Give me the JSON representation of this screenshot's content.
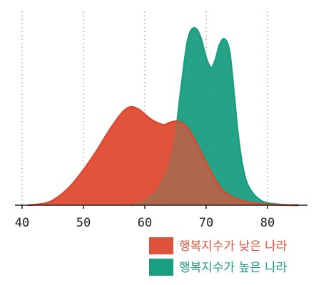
{
  "chart_data": {
    "type": "area",
    "title": "",
    "xlabel": "",
    "ylabel": "",
    "xlim": [
      38,
      86
    ],
    "ylim": [
      0,
      0.09
    ],
    "x_ticks": [
      40,
      50,
      60,
      70,
      80
    ],
    "x_tick_labels": [
      "40",
      "50",
      "60",
      "70",
      "80"
    ],
    "grid": "vertical-dotted",
    "legend_position": "bottom-right",
    "series": [
      {
        "name": "행복지수가 낮은 나라",
        "color": "#e0533b",
        "x": [
          41,
          44,
          46,
          48,
          50,
          52,
          54,
          56,
          57.5,
          59,
          61,
          63,
          64,
          65.5,
          67,
          69,
          71,
          73,
          76,
          80,
          85
        ],
        "y": [
          0.0,
          0.001,
          0.004,
          0.009,
          0.016,
          0.024,
          0.033,
          0.041,
          0.0445,
          0.0435,
          0.039,
          0.0365,
          0.0375,
          0.038,
          0.035,
          0.025,
          0.014,
          0.006,
          0.002,
          0.0004,
          0.0
        ]
      },
      {
        "name": "행복지수가 높은 나라",
        "color": "#1a9e80",
        "x": [
          58,
          60,
          62,
          63,
          64,
          65,
          66,
          67,
          68,
          69,
          70,
          70.8,
          71.5,
          72.2,
          73,
          73.8,
          74.5,
          75.2,
          76,
          77,
          79,
          82,
          85
        ],
        "y": [
          0.0,
          0.002,
          0.007,
          0.012,
          0.018,
          0.032,
          0.055,
          0.075,
          0.0805,
          0.077,
          0.067,
          0.0625,
          0.066,
          0.073,
          0.0755,
          0.07,
          0.052,
          0.032,
          0.017,
          0.008,
          0.002,
          0.0003,
          0.0
        ]
      }
    ]
  }
}
